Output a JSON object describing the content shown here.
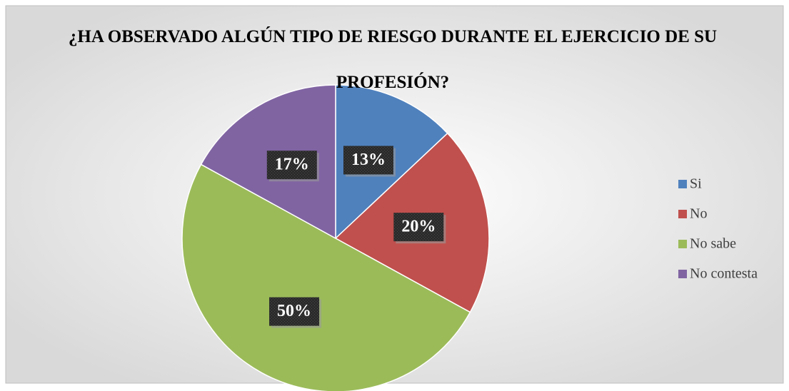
{
  "chart_data": {
    "type": "pie",
    "title": "¿HA OBSERVADO ALGÚN TIPO DE RIESGO DURANTE EL EJERCICIO DE SU PROFESIÓN?",
    "categories": [
      "Si",
      "No",
      "No sabe",
      "No contesta"
    ],
    "values": [
      13,
      20,
      50,
      17
    ],
    "value_labels": [
      "13%",
      "20%",
      "50%",
      "17%"
    ],
    "colors": [
      "#4f81bd",
      "#c0504d",
      "#9bbb59",
      "#8064a2"
    ],
    "legend": "right"
  }
}
